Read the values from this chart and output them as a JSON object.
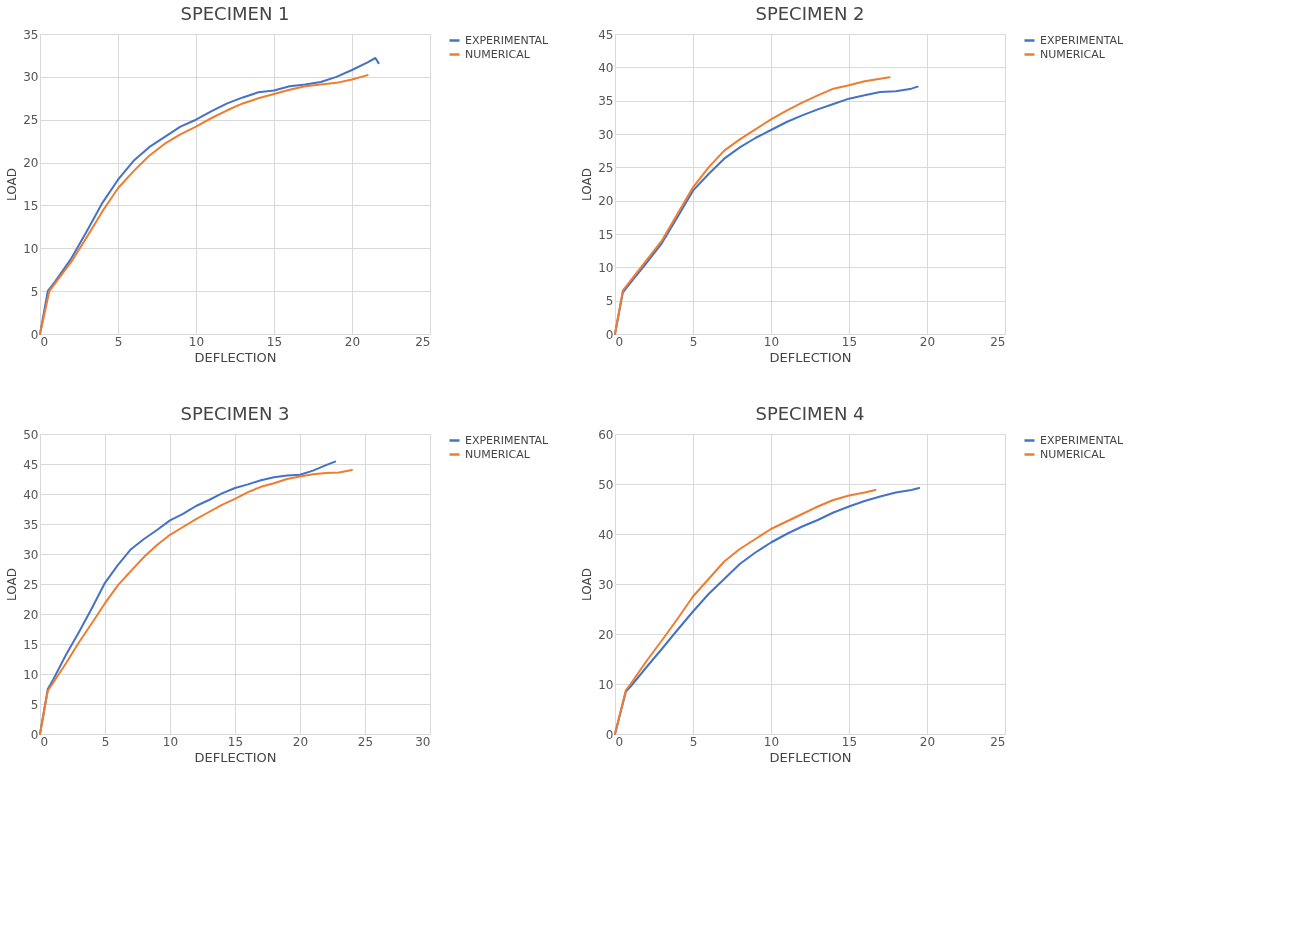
{
  "chart_data": [
    {
      "type": "line",
      "title": "SPECIMEN 1",
      "xlabel": "DEFLECTION",
      "ylabel": "LOAD",
      "xlim": [
        0,
        25
      ],
      "ylim": [
        0,
        35
      ],
      "xticks": [
        0,
        5,
        10,
        15,
        20,
        25
      ],
      "yticks": [
        0,
        5,
        10,
        15,
        20,
        25,
        30,
        35
      ],
      "grid": true,
      "legend": "right",
      "line_style": "solid",
      "series": [
        {
          "name": "EXPERIMENTAL",
          "color": "#4472c4",
          "x": [
            0,
            0.5,
            1,
            2,
            3,
            4,
            5,
            6,
            7,
            8,
            9,
            10,
            11,
            12,
            13,
            14,
            15,
            16,
            17,
            18,
            19,
            20,
            21,
            21.5,
            21.7
          ],
          "values": [
            0,
            5,
            6.2,
            8.8,
            12,
            15.3,
            18,
            20.2,
            21.8,
            23,
            24.2,
            25,
            26,
            26.9,
            27.6,
            28.2,
            28.4,
            28.9,
            29.1,
            29.4,
            30,
            30.8,
            31.7,
            32.2,
            31.6
          ]
        },
        {
          "name": "NUMERICAL",
          "color": "#ed7d31",
          "x": [
            0,
            0.6,
            1,
            2,
            3,
            4,
            5,
            6,
            7,
            8,
            9,
            10,
            11,
            12,
            13,
            14,
            15,
            16,
            17,
            18,
            19,
            20,
            21
          ],
          "values": [
            0,
            5,
            6,
            8.4,
            11.3,
            14.3,
            17,
            19,
            20.8,
            22.2,
            23.3,
            24.2,
            25.2,
            26.1,
            26.9,
            27.5,
            28,
            28.5,
            28.9,
            29.1,
            29.3,
            29.7,
            30.2
          ]
        }
      ]
    },
    {
      "type": "line",
      "title": "SPECIMEN 2",
      "xlabel": "DEFLECTION",
      "ylabel": "LOAD",
      "xlim": [
        0,
        25
      ],
      "ylim": [
        0,
        45
      ],
      "xticks": [
        0,
        5,
        10,
        15,
        20,
        25
      ],
      "yticks": [
        0,
        5,
        10,
        15,
        20,
        25,
        30,
        35,
        40,
        45
      ],
      "grid": true,
      "legend": "right",
      "line_style": "solid",
      "series": [
        {
          "name": "EXPERIMENTAL",
          "color": "#4472c4",
          "x": [
            0,
            0.5,
            1,
            2,
            3,
            4,
            5,
            6,
            7,
            8,
            9,
            10,
            11,
            12,
            13,
            14,
            15,
            16,
            17,
            18,
            19,
            19.4
          ],
          "values": [
            0,
            6.2,
            7.7,
            10.6,
            13.6,
            17.5,
            21.5,
            24,
            26.3,
            28,
            29.4,
            30.6,
            31.8,
            32.8,
            33.7,
            34.5,
            35.3,
            35.8,
            36.3,
            36.4,
            36.8,
            37.1
          ]
        },
        {
          "name": "NUMERICAL",
          "color": "#ed7d31",
          "x": [
            0,
            0.5,
            1,
            2,
            3,
            4,
            5,
            6,
            7,
            8,
            9,
            10,
            11,
            12,
            13,
            14,
            15,
            16,
            17,
            17.6
          ],
          "values": [
            0,
            6.5,
            8,
            11,
            14,
            18,
            22,
            25,
            27.5,
            29.2,
            30.7,
            32.2,
            33.5,
            34.7,
            35.8,
            36.8,
            37.3,
            37.9,
            38.3,
            38.5
          ]
        }
      ]
    },
    {
      "type": "line",
      "title": "SPECIMEN 3",
      "xlabel": "DEFLECTION",
      "ylabel": "LOAD",
      "xlim": [
        0,
        30
      ],
      "ylim": [
        0,
        50
      ],
      "xticks": [
        0,
        5,
        10,
        15,
        20,
        25,
        30
      ],
      "yticks": [
        0,
        5,
        10,
        15,
        20,
        25,
        30,
        35,
        40,
        45,
        50
      ],
      "grid": true,
      "legend": "right",
      "line_style": "solid",
      "series": [
        {
          "name": "EXPERIMENTAL",
          "color": "#4472c4",
          "x": [
            0,
            0.6,
            1,
            2,
            3,
            4,
            5,
            6,
            7,
            8,
            9,
            10,
            11,
            12,
            13,
            14,
            15,
            16,
            17,
            18,
            19,
            20,
            21,
            22,
            22.7
          ],
          "values": [
            0,
            7.5,
            9,
            13.2,
            17,
            21,
            25.2,
            28.2,
            30.8,
            32.5,
            34,
            35.6,
            36.7,
            38,
            39,
            40.1,
            41,
            41.6,
            42.3,
            42.8,
            43.1,
            43.2,
            43.9,
            44.8,
            45.4
          ]
        },
        {
          "name": "NUMERICAL",
          "color": "#ed7d31",
          "x": [
            0,
            0.6,
            1,
            2,
            3,
            4,
            5,
            6,
            7,
            8,
            9,
            10,
            11,
            12,
            13,
            14,
            15,
            16,
            17,
            18,
            19,
            20,
            21,
            22,
            23,
            24
          ],
          "values": [
            0,
            7.2,
            8.5,
            11.8,
            15.3,
            18.5,
            21.8,
            24.8,
            27.2,
            29.5,
            31.5,
            33.2,
            34.5,
            35.8,
            37,
            38.2,
            39.2,
            40.3,
            41.2,
            41.8,
            42.5,
            42.9,
            43.3,
            43.5,
            43.6,
            44
          ]
        }
      ]
    },
    {
      "type": "line",
      "title": "SPECIMEN 4",
      "xlabel": "DEFLECTION",
      "ylabel": "LOAD",
      "xlim": [
        0,
        25
      ],
      "ylim": [
        0,
        60
      ],
      "xticks": [
        0,
        5,
        10,
        15,
        20,
        25
      ],
      "yticks": [
        0,
        10,
        20,
        30,
        40,
        50,
        60
      ],
      "grid": true,
      "legend": "right",
      "line_style": "solid",
      "series": [
        {
          "name": "EXPERIMENTAL",
          "color": "#4472c4",
          "x": [
            0,
            0.7,
            1,
            2,
            3,
            4,
            5,
            6,
            7,
            8,
            9,
            10,
            11,
            12,
            13,
            14,
            15,
            16,
            17,
            18,
            19,
            19.5
          ],
          "values": [
            0,
            8.5,
            9.5,
            13.3,
            17,
            20.8,
            24.5,
            28,
            31,
            34,
            36.3,
            38.3,
            40,
            41.5,
            42.8,
            44.3,
            45.5,
            46.6,
            47.5,
            48.3,
            48.8,
            49.2
          ]
        },
        {
          "name": "NUMERICAL",
          "color": "#ed7d31",
          "x": [
            0,
            0.7,
            1,
            2,
            3,
            4,
            5,
            6,
            7,
            8,
            9,
            10,
            11,
            12,
            13,
            14,
            15,
            16,
            16.7
          ],
          "values": [
            0,
            8.8,
            10,
            14.5,
            18.7,
            23,
            27.5,
            31,
            34.5,
            37,
            39,
            41,
            42.5,
            44,
            45.5,
            46.8,
            47.7,
            48.3,
            48.8
          ]
        }
      ]
    }
  ]
}
